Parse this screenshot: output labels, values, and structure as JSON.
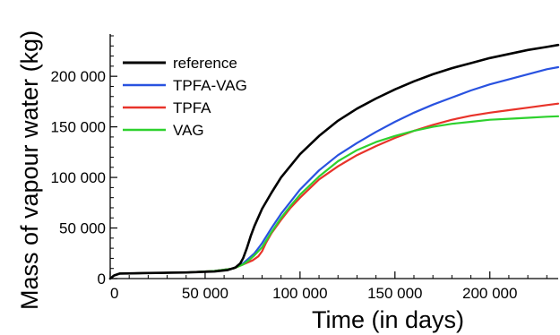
{
  "chart_data": {
    "type": "line",
    "xlabel": "Time (in days)",
    "ylabel": "Mass of vapour water (kg)",
    "xlim": [
      0,
      236000
    ],
    "ylim": [
      0,
      240000
    ],
    "x_ticks": [
      {
        "value": 0,
        "label": "0"
      },
      {
        "value": 50000,
        "label": "50 000"
      },
      {
        "value": 100000,
        "label": "100 000"
      },
      {
        "value": 150000,
        "label": "150 000"
      },
      {
        "value": 200000,
        "label": "200 000"
      }
    ],
    "y_ticks": [
      {
        "value": 0,
        "label": "0"
      },
      {
        "value": 50000,
        "label": "50 000"
      },
      {
        "value": 100000,
        "label": "100 000"
      },
      {
        "value": 150000,
        "label": "150 000"
      },
      {
        "value": 200000,
        "label": "200 000"
      }
    ],
    "legend_position": "top-left",
    "grid": false,
    "series": [
      {
        "name": "reference",
        "color": "#000000",
        "x": [
          0,
          2000,
          5000,
          20000,
          40000,
          55000,
          62000,
          66000,
          68500,
          70000,
          72000,
          74000,
          76000,
          80000,
          85000,
          90000,
          100000,
          110000,
          120000,
          130000,
          140000,
          150000,
          160000,
          170000,
          180000,
          190000,
          200000,
          210000,
          220000,
          230000,
          236000
        ],
        "y": [
          0,
          3000,
          5000,
          5500,
          6000,
          7000,
          8500,
          11000,
          15000,
          20000,
          30000,
          42000,
          52000,
          69000,
          85000,
          100000,
          123000,
          141000,
          156000,
          168000,
          178000,
          187000,
          195000,
          202000,
          208000,
          213000,
          218000,
          222000,
          226000,
          229000,
          231000
        ]
      },
      {
        "name": "TPFA-VAG",
        "color": "#2952e0",
        "x": [
          0,
          2000,
          5000,
          20000,
          40000,
          55000,
          65000,
          70000,
          73000,
          76000,
          78000,
          80000,
          85000,
          90000,
          95000,
          100000,
          110000,
          120000,
          130000,
          140000,
          150000,
          160000,
          170000,
          180000,
          190000,
          200000,
          210000,
          220000,
          230000,
          236000
        ],
        "y": [
          0,
          3000,
          5000,
          5500,
          6000,
          7500,
          10000,
          15000,
          20000,
          25000,
          30000,
          35000,
          50000,
          64000,
          76000,
          88000,
          107000,
          122000,
          134000,
          145000,
          155000,
          164000,
          172000,
          179000,
          186000,
          192000,
          197000,
          202000,
          207000,
          209000
        ]
      },
      {
        "name": "TPFA",
        "color": "#e8332a",
        "x": [
          0,
          2000,
          5000,
          20000,
          40000,
          55000,
          65000,
          70000,
          75000,
          78000,
          80000,
          82000,
          85000,
          90000,
          95000,
          100000,
          110000,
          120000,
          130000,
          140000,
          150000,
          160000,
          170000,
          180000,
          190000,
          200000,
          210000,
          220000,
          230000,
          236000
        ],
        "y": [
          0,
          3000,
          5000,
          5500,
          6000,
          7500,
          10000,
          14000,
          18000,
          22000,
          27000,
          35000,
          45000,
          58000,
          70000,
          80000,
          98000,
          111000,
          122000,
          131000,
          139000,
          146000,
          152000,
          157000,
          161000,
          164000,
          166500,
          169000,
          171500,
          173000
        ]
      },
      {
        "name": "VAG",
        "color": "#2ed12e",
        "x": [
          0,
          2000,
          5000,
          20000,
          40000,
          55000,
          65000,
          70000,
          73000,
          76000,
          78000,
          80000,
          85000,
          90000,
          95000,
          100000,
          110000,
          120000,
          130000,
          140000,
          150000,
          160000,
          170000,
          180000,
          190000,
          200000,
          210000,
          220000,
          230000,
          236000
        ],
        "y": [
          0,
          3000,
          5000,
          5500,
          6000,
          7500,
          10000,
          14000,
          18000,
          23000,
          27000,
          31000,
          46000,
          60000,
          72000,
          83000,
          101000,
          116000,
          127000,
          135000,
          141000,
          146000,
          150000,
          153000,
          155000,
          157000,
          158000,
          159000,
          160000,
          160500
        ]
      }
    ]
  }
}
